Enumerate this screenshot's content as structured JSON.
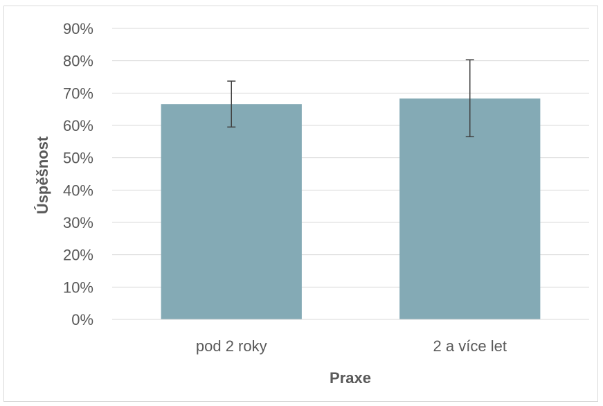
{
  "chart_data": {
    "type": "bar",
    "categories": [
      "pod 2 roky",
      "2 a více let"
    ],
    "values": [
      0.666,
      0.683
    ],
    "error_low": [
      0.595,
      0.565
    ],
    "error_high": [
      0.737,
      0.803
    ],
    "xlabel": "Praxe",
    "ylabel": "Úspěšnost",
    "ylim": [
      0,
      0.9
    ],
    "yticks": [
      0,
      0.1,
      0.2,
      0.3,
      0.4,
      0.5,
      0.6,
      0.7,
      0.8,
      0.9
    ],
    "ytick_labels": [
      "0%",
      "10%",
      "20%",
      "30%",
      "40%",
      "50%",
      "60%",
      "70%",
      "80%",
      "90%"
    ],
    "grid": true,
    "legend": "none",
    "colors": {
      "bar": "#84aab5",
      "grid": "#d9d9d9",
      "error_bar": "#404040",
      "text": "#595959"
    }
  }
}
